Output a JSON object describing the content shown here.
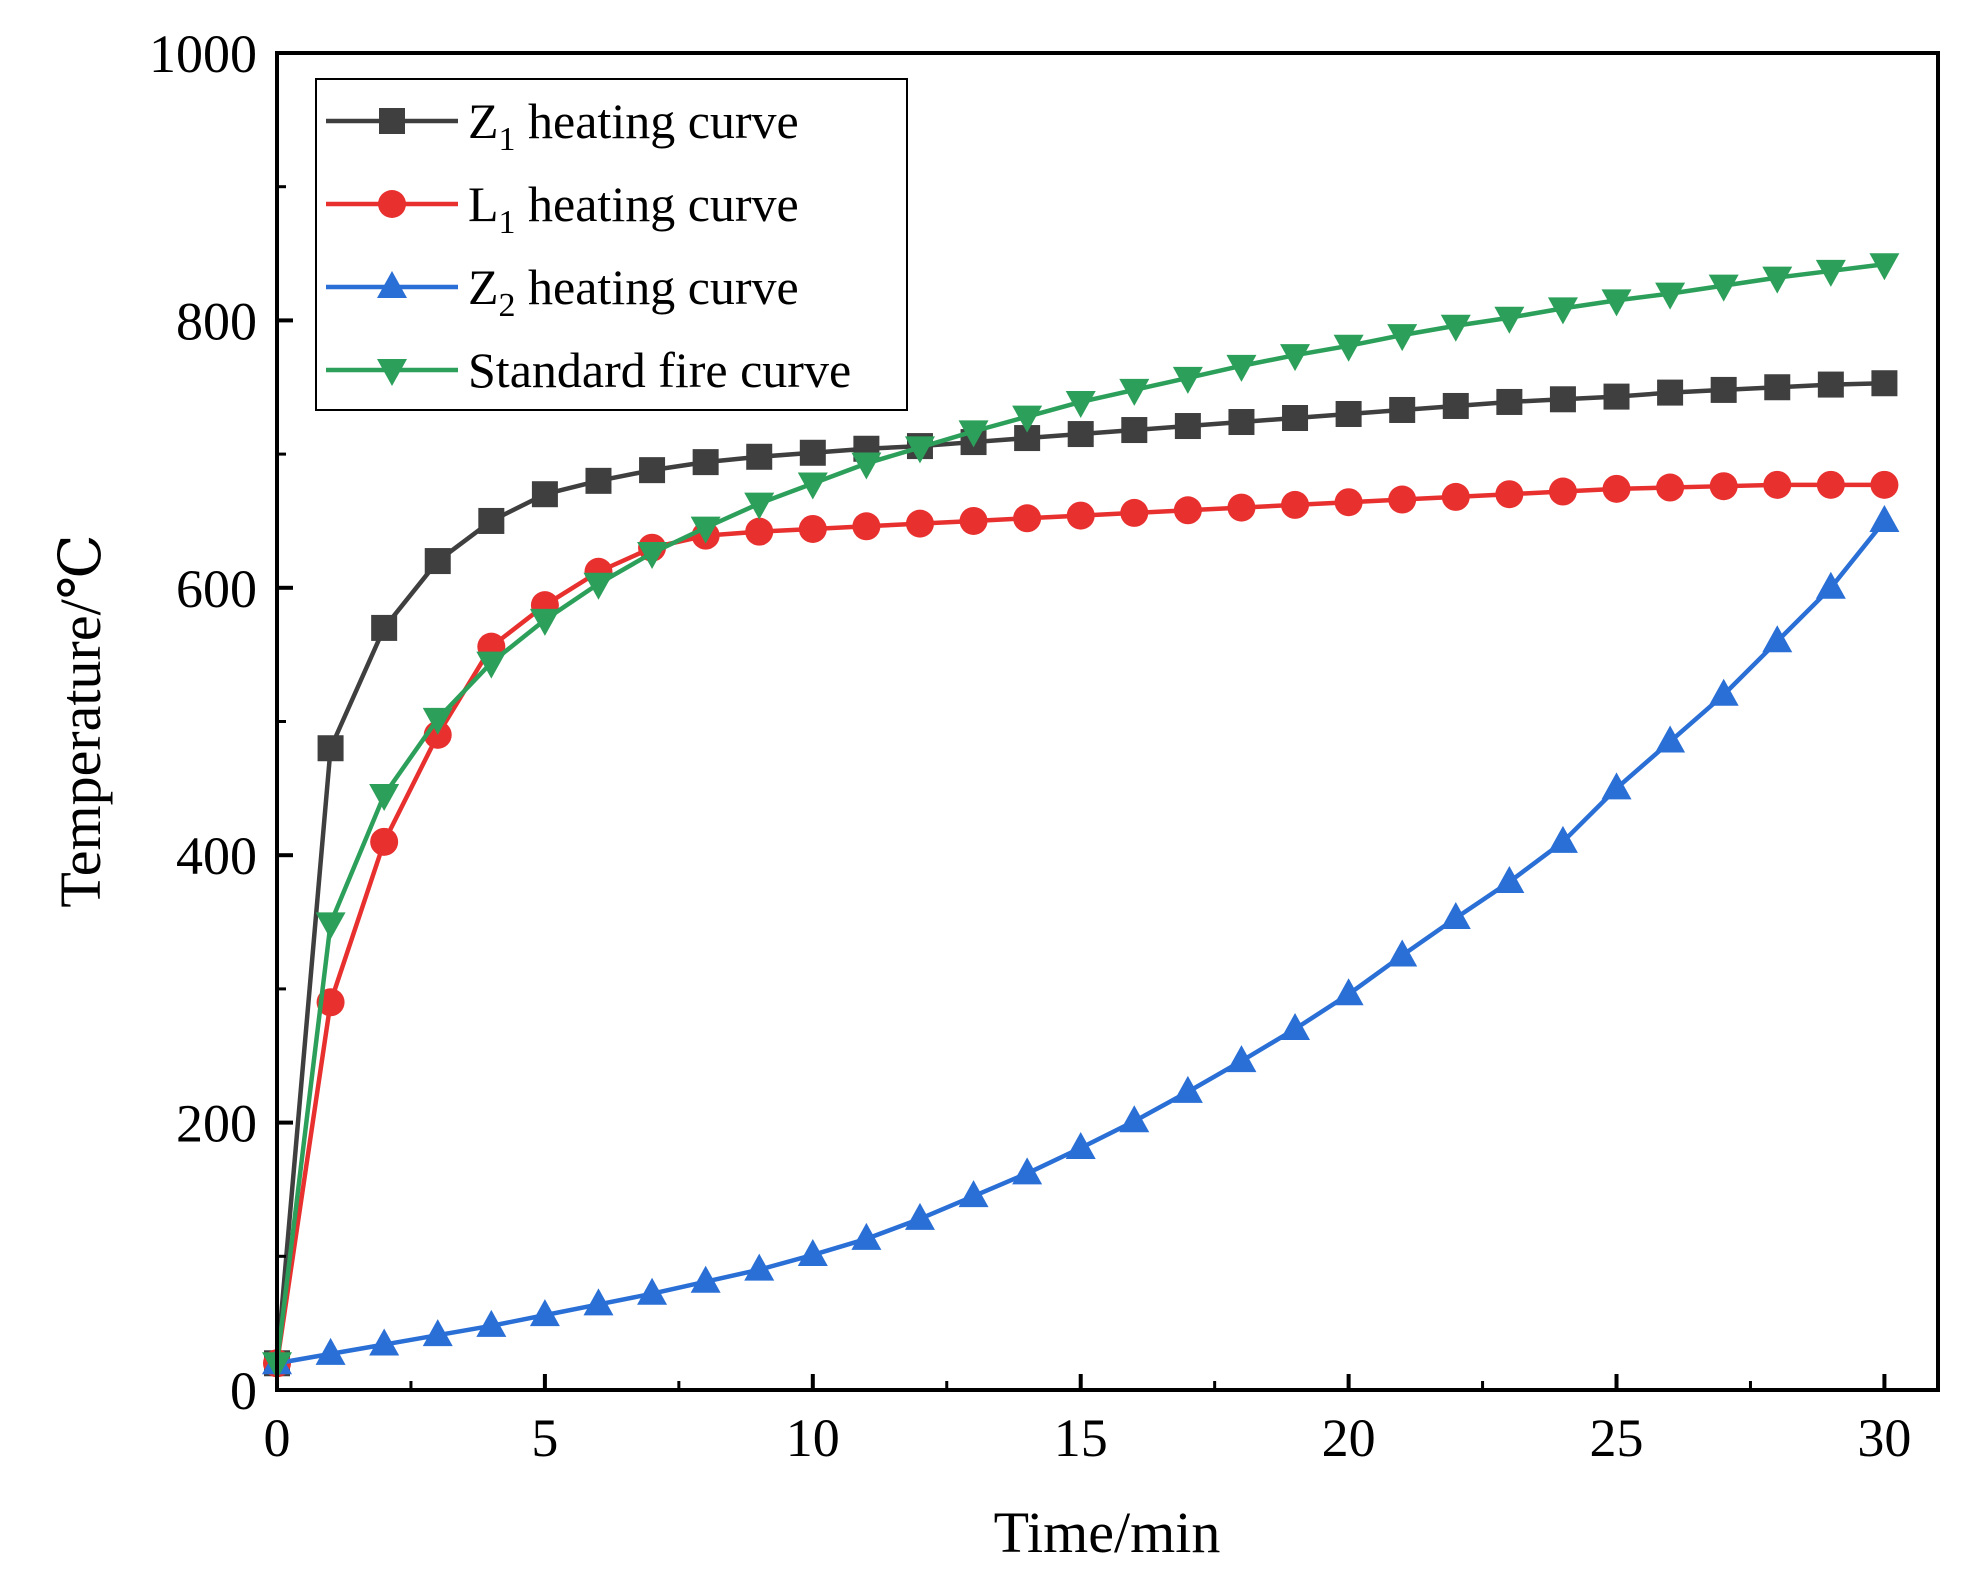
{
  "chart_data": {
    "type": "line",
    "xlabel": "Time/min",
    "ylabel": "Temperature/℃",
    "xlim": [
      0,
      31
    ],
    "ylim": [
      0,
      1000
    ],
    "xticks": [
      0,
      5,
      10,
      15,
      20,
      25,
      30
    ],
    "yticks": [
      0,
      200,
      400,
      600,
      800,
      1000
    ],
    "grid": false,
    "legend_position": "top-left",
    "x": [
      0,
      1,
      2,
      3,
      4,
      5,
      6,
      7,
      8,
      9,
      10,
      11,
      12,
      13,
      14,
      15,
      16,
      17,
      18,
      19,
      20,
      21,
      22,
      23,
      24,
      25,
      26,
      27,
      28,
      29,
      30
    ],
    "series": [
      {
        "name": "Z1 heating curve",
        "legend_main": "Z",
        "legend_sub": "1",
        "legend_rest": " heating curve",
        "color": "#3f3f3f",
        "marker": "square",
        "values": [
          20,
          480,
          570,
          620,
          650,
          670,
          680,
          688,
          694,
          698,
          701,
          704,
          706,
          709,
          712,
          715,
          718,
          721,
          724,
          727,
          730,
          733,
          736,
          739,
          741,
          743,
          746,
          748,
          750,
          752,
          753
        ]
      },
      {
        "name": "L1 heating curve",
        "legend_main": "L",
        "legend_sub": "1",
        "legend_rest": " heating curve",
        "color": "#e8302f",
        "marker": "circle",
        "values": [
          20,
          290,
          410,
          490,
          556,
          587,
          612,
          630,
          639,
          642,
          644,
          646,
          648,
          650,
          652,
          654,
          656,
          658,
          660,
          662,
          664,
          666,
          668,
          670,
          672,
          674,
          675,
          676,
          677,
          677,
          677
        ]
      },
      {
        "name": "Z2 heating curve",
        "legend_main": "Z",
        "legend_sub": "2",
        "legend_rest": " heating curve",
        "color": "#2a6fd6",
        "marker": "triangle-up",
        "values": [
          20,
          27,
          34,
          41,
          48,
          56,
          64,
          72,
          81,
          90,
          101,
          113,
          128,
          145,
          162,
          181,
          201,
          223,
          246,
          270,
          296,
          325,
          353,
          380,
          410,
          450,
          485,
          520,
          560,
          600,
          650
        ]
      },
      {
        "name": "Standard fire curve",
        "legend_main": "Standard fire curve",
        "legend_sub": "",
        "legend_rest": "",
        "color": "#2ca05a",
        "marker": "triangle-down",
        "values": [
          20,
          349,
          445,
          502,
          544,
          576,
          603,
          626,
          645,
          663,
          678,
          693,
          705,
          717,
          728,
          739,
          748,
          757,
          766,
          774,
          781,
          789,
          796,
          802,
          809,
          815,
          820,
          826,
          832,
          837,
          842
        ]
      }
    ]
  }
}
